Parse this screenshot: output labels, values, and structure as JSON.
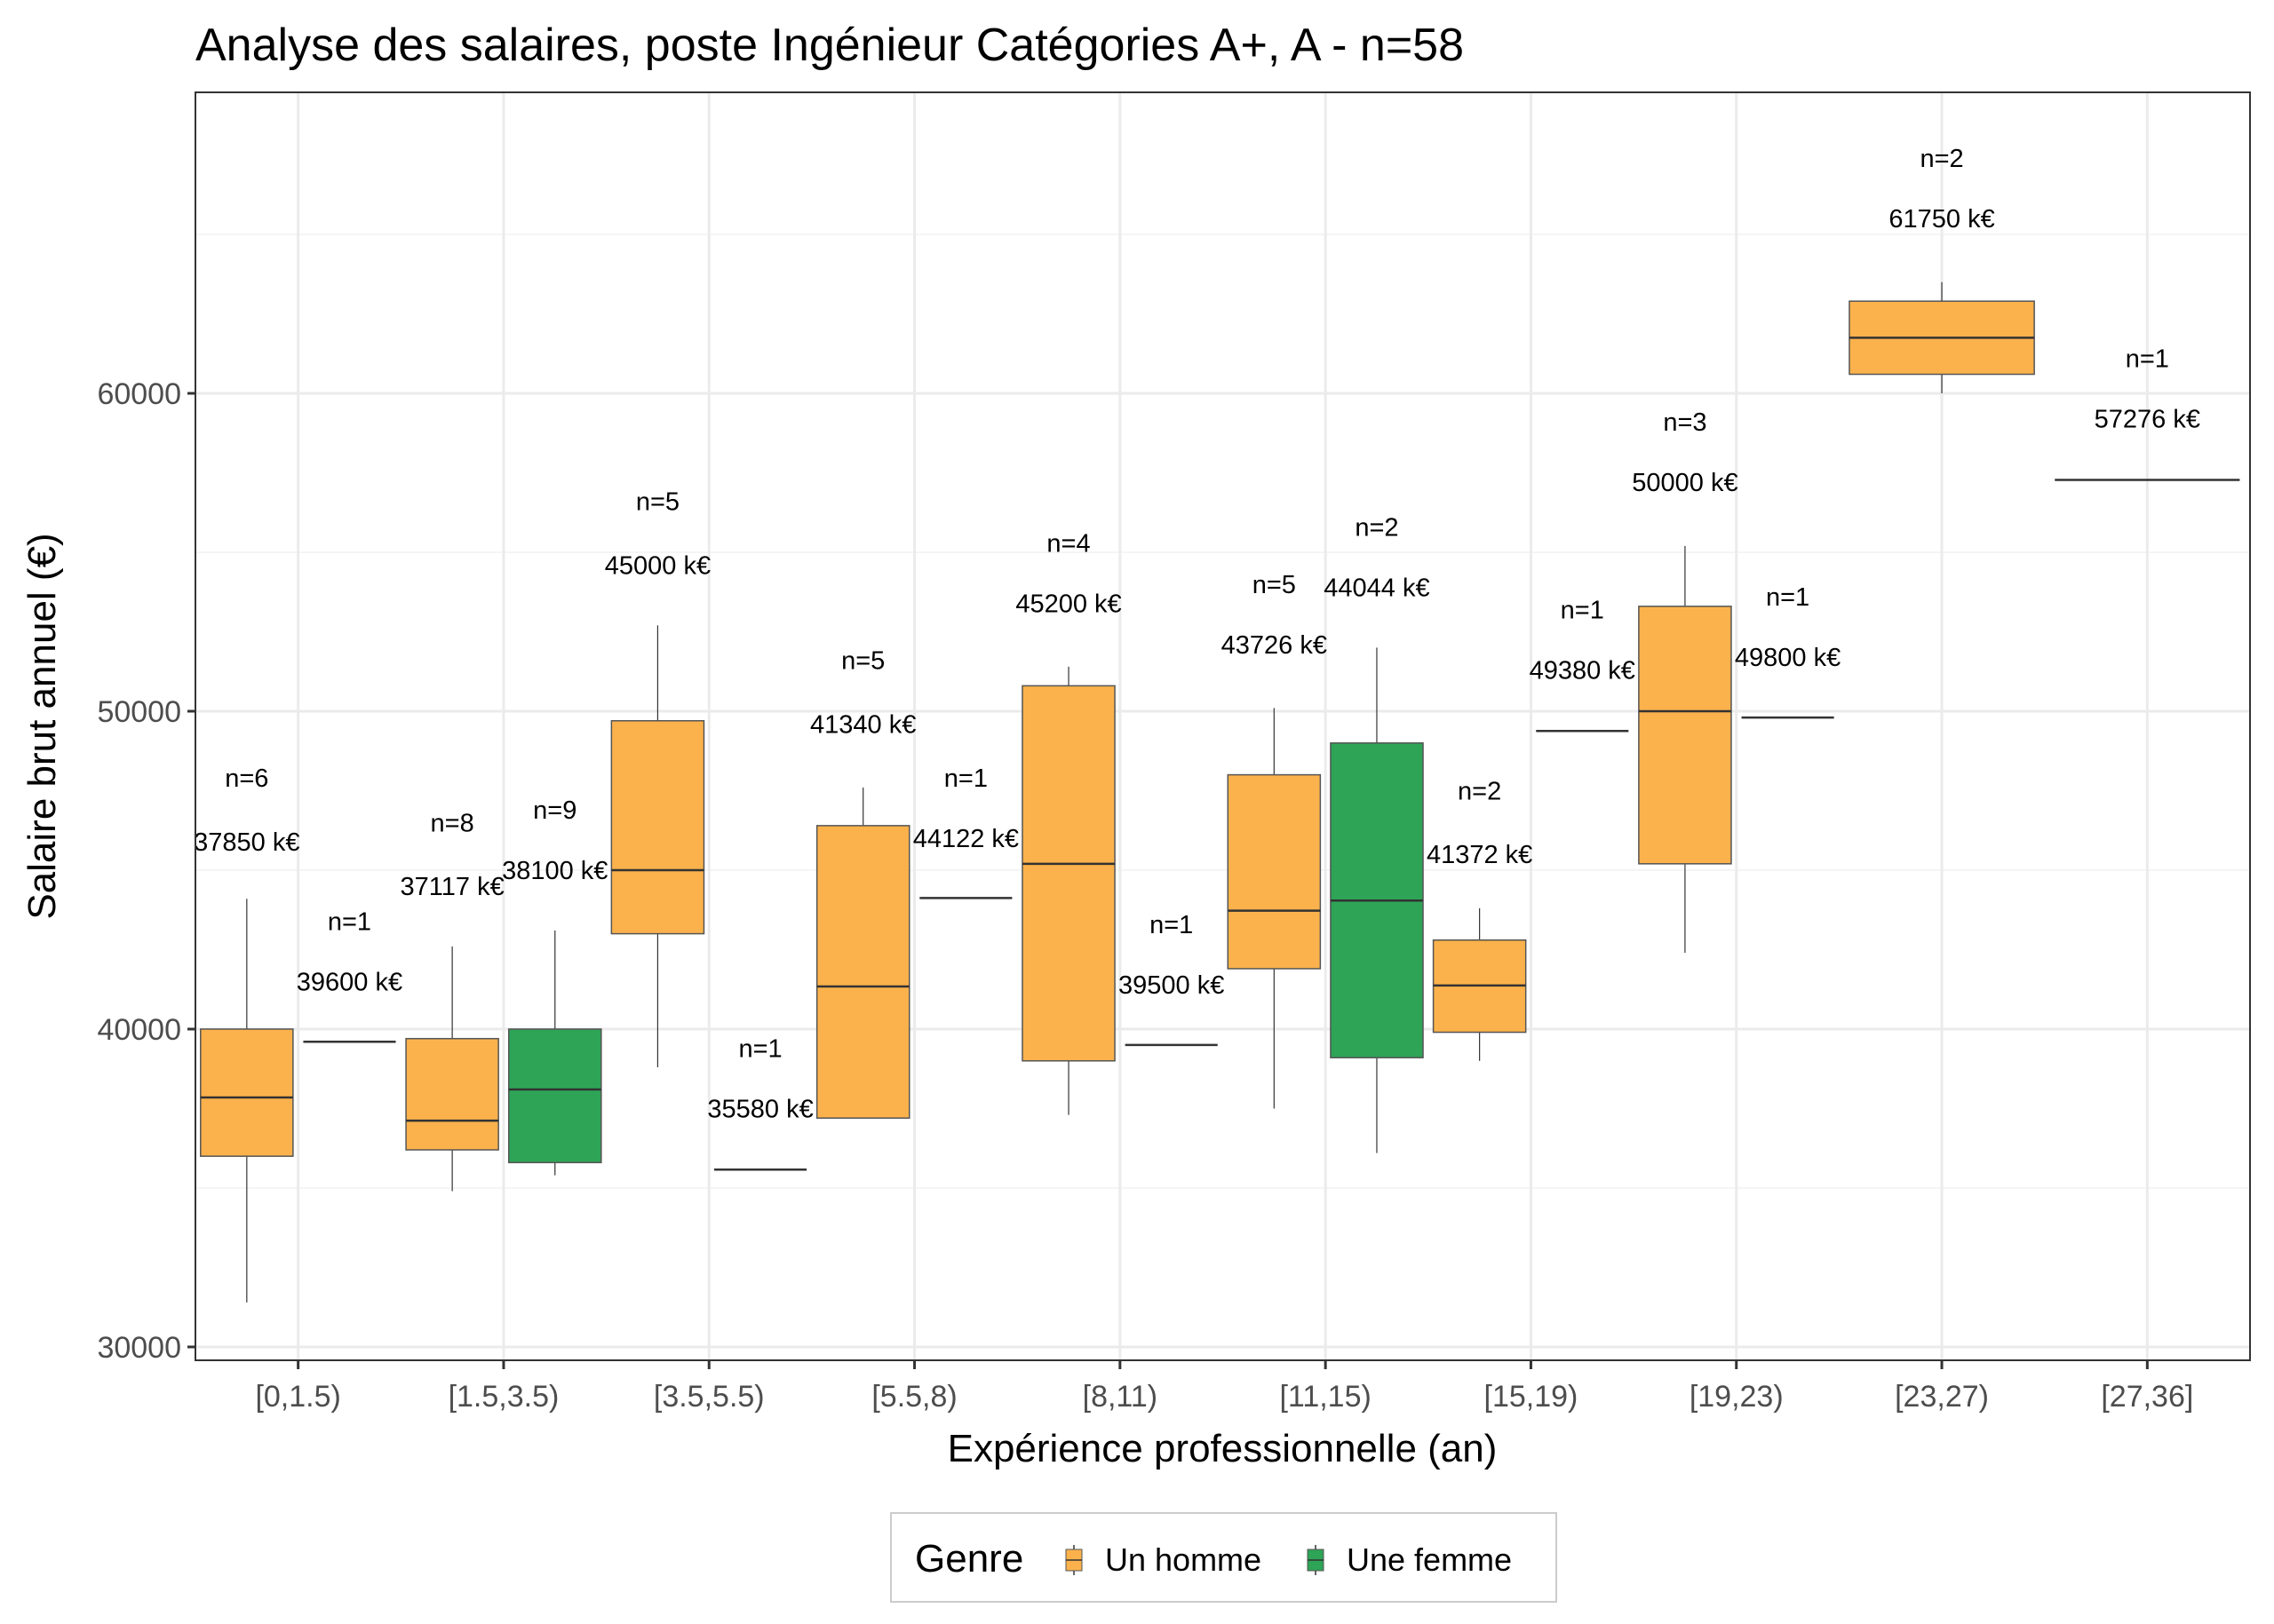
{
  "chart_data": {
    "type": "boxplot",
    "title": "Analyse des salaires, poste Ingénieur Catégories A+, A - n=58",
    "xlabel": "Expérience professionnelle (an)",
    "ylabel": "Salaire brut annuel (€)",
    "ylim": [
      29580,
      69470
    ],
    "yticks": [
      30000,
      40000,
      50000,
      60000
    ],
    "ytick_labels": [
      "30000",
      "40000",
      "50000",
      "60000"
    ],
    "y_minor_gridlines": [
      35000,
      45000,
      55000,
      65000
    ],
    "grid": true,
    "categories": [
      "[0,1.5)",
      "[1.5,3.5)",
      "[3.5,5.5)",
      "[5.5,8)",
      "[8,11)",
      "[11,15)",
      "[15,19)",
      "[19,23)",
      "[23,27)",
      "[27,36]"
    ],
    "legend": {
      "title": "Genre",
      "position": "bottom",
      "entries": [
        {
          "name": "Un homme",
          "color": "#FBB24C"
        },
        {
          "name": "Une femme",
          "color": "#2EA457"
        }
      ]
    },
    "series": [
      {
        "name": "Un homme",
        "color": "#FBB24C",
        "boxes": [
          {
            "category": "[0,1.5)",
            "min": 31400,
            "q1": 36000,
            "median": 37850,
            "q3": 40000,
            "max": 44100,
            "n": 6,
            "label": "37850 k€",
            "n_label": "n=6",
            "label_y": 45900,
            "n_label_y": 47900
          },
          {
            "category": "[1.5,3.5)",
            "min": 34900,
            "q1": 36200,
            "median": 37117,
            "q3": 39700,
            "max": 42600,
            "n": 8,
            "label": "37117 k€",
            "n_label": "n=8",
            "label_y": 44500,
            "n_label_y": 46500
          },
          {
            "category": "[3.5,5.5)",
            "min": 38800,
            "q1": 43000,
            "median": 45000,
            "q3": 49700,
            "max": 52700,
            "n": 5,
            "label": "45000 k€",
            "n_label": "n=5",
            "label_y": 54600,
            "n_label_y": 56600
          },
          {
            "category": "[5.5,8)",
            "min": 37200,
            "q1": 37200,
            "median": 41340,
            "q3": 46400,
            "max": 47600,
            "n": 5,
            "label": "41340 k€",
            "n_label": "n=5",
            "label_y": 49600,
            "n_label_y": 51600
          },
          {
            "category": "[8,11)",
            "min": 37300,
            "q1": 39000,
            "median": 45200,
            "q3": 50800,
            "max": 51400,
            "n": 4,
            "label": "45200 k€",
            "n_label": "n=4",
            "label_y": 53400,
            "n_label_y": 55300
          },
          {
            "category": "[11,15)",
            "min": 37500,
            "q1": 41900,
            "median": 43726,
            "q3": 48000,
            "max": 50100,
            "n": 5,
            "label": "43726 k€",
            "n_label": "n=5",
            "label_y": 52100,
            "n_label_y": 54000
          },
          {
            "category": "[15,19)",
            "min": 39000,
            "q1": 39900,
            "median": 41372,
            "q3": 42800,
            "max": 43800,
            "n": 2,
            "label": "41372 k€",
            "n_label": "n=2",
            "label_y": 45500,
            "n_label_y": 47500
          },
          {
            "category": "[19,23)",
            "min": 42400,
            "q1": 45200,
            "median": 50000,
            "q3": 53300,
            "max": 55200,
            "n": 3,
            "label": "50000 k€",
            "n_label": "n=3",
            "label_y": 57200,
            "n_label_y": 59100
          },
          {
            "category": "[23,27)",
            "min": 60000,
            "q1": 60600,
            "median": 61750,
            "q3": 62900,
            "max": 63500,
            "n": 2,
            "label": "61750 k€",
            "n_label": "n=2",
            "label_y": 65500,
            "n_label_y": 67400
          },
          {
            "category": "[27,36]",
            "min": 57276,
            "q1": 57276,
            "median": 57276,
            "q3": 57276,
            "max": 57276,
            "n": 1,
            "label": "57276 k€",
            "n_label": "n=1",
            "label_y": 59200,
            "n_label_y": 61100
          }
        ]
      },
      {
        "name": "Une femme",
        "color": "#2EA457",
        "boxes": [
          {
            "category": "[0,1.5)",
            "min": 39600,
            "q1": 39600,
            "median": 39600,
            "q3": 39600,
            "max": 39600,
            "n": 1,
            "label": "39600 k€",
            "n_label": "n=1",
            "label_y": 41500,
            "n_label_y": 43400
          },
          {
            "category": "[1.5,3.5)",
            "min": 35400,
            "q1": 35800,
            "median": 38100,
            "q3": 40000,
            "max": 43100,
            "n": 9,
            "label": "38100 k€",
            "n_label": "n=9",
            "label_y": 45000,
            "n_label_y": 46900
          },
          {
            "category": "[3.5,5.5)",
            "min": 35580,
            "q1": 35580,
            "median": 35580,
            "q3": 35580,
            "max": 35580,
            "n": 1,
            "label": "35580 k€",
            "n_label": "n=1",
            "label_y": 37500,
            "n_label_y": 39400
          },
          {
            "category": "[5.5,8)",
            "min": 44122,
            "q1": 44122,
            "median": 44122,
            "q3": 44122,
            "max": 44122,
            "n": 1,
            "label": "44122 k€",
            "n_label": "n=1",
            "label_y": 46000,
            "n_label_y": 47900
          },
          {
            "category": "[8,11)",
            "min": 39500,
            "q1": 39500,
            "median": 39500,
            "q3": 39500,
            "max": 39500,
            "n": 1,
            "label": "39500 k€",
            "n_label": "n=1",
            "label_y": 41400,
            "n_label_y": 43300
          },
          {
            "category": "[11,15)",
            "min": 36100,
            "q1": 39100,
            "median": 44044,
            "q3": 49000,
            "max": 52000,
            "n": 2,
            "label": "44044 k€",
            "n_label": "n=2",
            "label_y": 53900,
            "n_label_y": 55800
          },
          {
            "category": "[15,19)",
            "min": 49380,
            "q1": 49380,
            "median": 49380,
            "q3": 49380,
            "max": 49380,
            "n": 1,
            "label": "49380 k€",
            "n_label": "n=1",
            "label_y": 51300,
            "n_label_y": 53200
          },
          {
            "category": "[19,23)",
            "min": 49800,
            "q1": 49800,
            "median": 49800,
            "q3": 49800,
            "max": 49800,
            "n": 1,
            "label": "49800 k€",
            "n_label": "n=1",
            "label_y": 51700,
            "n_label_y": 53600
          }
        ]
      }
    ]
  }
}
